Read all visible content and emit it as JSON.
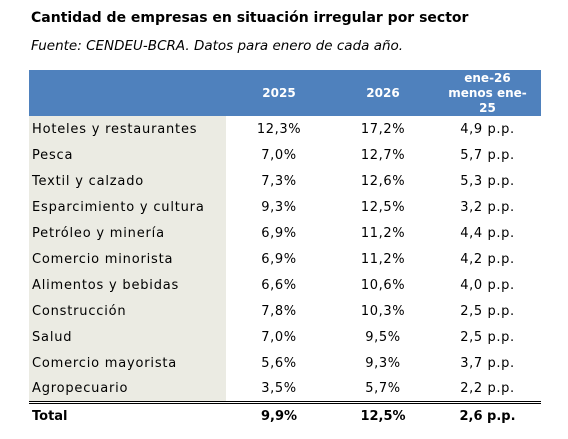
{
  "title": "Cantidad de empresas en situación irregular por sector",
  "subtitle": "Fuente: CENDEU-BCRA. Datos para enero de cada año.",
  "table": {
    "headers": [
      "",
      "2025",
      "2026",
      "ene-26 menos ene-25"
    ],
    "rows": [
      {
        "sector": "Hoteles y restaurantes",
        "v2025": "12,3%",
        "v2026": "17,2%",
        "diff": "4,9 p.p."
      },
      {
        "sector": "Pesca",
        "v2025": "7,0%",
        "v2026": "12,7%",
        "diff": "5,7 p.p."
      },
      {
        "sector": "Textil y calzado",
        "v2025": "7,3%",
        "v2026": "12,6%",
        "diff": "5,3 p.p."
      },
      {
        "sector": "Esparcimiento y cultura",
        "v2025": "9,3%",
        "v2026": "12,5%",
        "diff": "3,2 p.p."
      },
      {
        "sector": "Petróleo y minería",
        "v2025": "6,9%",
        "v2026": "11,2%",
        "diff": "4,4 p.p."
      },
      {
        "sector": "Comercio minorista",
        "v2025": "6,9%",
        "v2026": "11,2%",
        "diff": "4,2 p.p."
      },
      {
        "sector": "Alimentos y bebidas",
        "v2025": "6,6%",
        "v2026": "10,6%",
        "diff": "4,0 p.p."
      },
      {
        "sector": "Construcción",
        "v2025": "7,8%",
        "v2026": "10,3%",
        "diff": "2,5 p.p."
      },
      {
        "sector": "Salud",
        "v2025": "7,0%",
        "v2026": "9,5%",
        "diff": "2,5 p.p."
      },
      {
        "sector": "Comercio mayorista",
        "v2025": "5,6%",
        "v2026": "9,3%",
        "diff": "3,7 p.p."
      },
      {
        "sector": "Agropecuario",
        "v2025": "3,5%",
        "v2026": "5,7%",
        "diff": "2,2 p.p."
      }
    ],
    "total": {
      "sector": "Total",
      "v2025": "9,9%",
      "v2026": "12,5%",
      "diff": "2,6 p.p."
    }
  },
  "colors": {
    "header_bg": "#4f81bd",
    "header_text": "#ffffff",
    "label_column_bg": "#ebebe3"
  }
}
